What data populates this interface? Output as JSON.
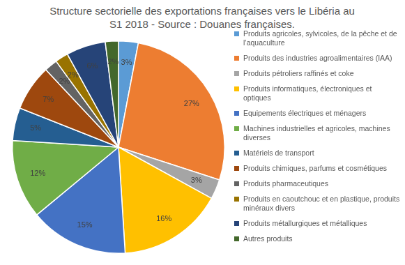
{
  "chart_data": {
    "type": "pie",
    "title": "Structure sectorielle des exportations françaises vers le Libéria au S1 2018 - Source : Douanes françaises.",
    "categories": [
      "Produits agricoles, sylvicoles, de la pêche et de l’aquaculture",
      "Produits des industries agroalimentaires (IAA)",
      "Produits pétroliers raffinés et coke",
      "Produits informatiques, électroniques et optiques",
      "Equipements électriques et ménagers",
      "Machines industrielles et agricoles, machines diverses",
      "Matériels de transport",
      "Produits chimiques, parfums et cosmétiques",
      "Produits pharmaceutiques",
      "Produits en caoutchouc et en plastique, produits minéraux divers",
      "Produits métallurgiques et métalliques",
      "Autres produits"
    ],
    "values": [
      3,
      27,
      3,
      16,
      15,
      12,
      5,
      7,
      2,
      2,
      6,
      2
    ],
    "value_labels": [
      "3%",
      "27%",
      "3%",
      "16%",
      "15%",
      "12%",
      "5%",
      "7%",
      "2%",
      "2%",
      "6%",
      "2%"
    ],
    "colors": [
      "#5b9bd5",
      "#ed7d31",
      "#a5a5a5",
      "#ffc000",
      "#4472c4",
      "#70ad47",
      "#255e91",
      "#9e480e",
      "#636363",
      "#997300",
      "#264478",
      "#43682b"
    ],
    "data_labels": true,
    "legend": "right"
  }
}
